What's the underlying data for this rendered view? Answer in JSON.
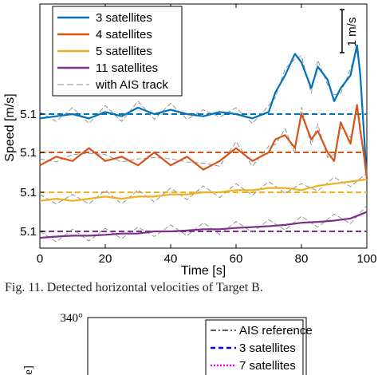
{
  "chart_data": [
    {
      "type": "line",
      "title": "",
      "xlabel": "Time [s]",
      "ylabel": "Speed [m/s]",
      "xlim": [
        0,
        100
      ],
      "xticks": [
        0,
        20,
        40,
        60,
        80,
        100
      ],
      "ytick_labels": [
        "5.1",
        "5.1",
        "5.1",
        "5.1"
      ],
      "scalebar_label": "1 m/s",
      "grid": false,
      "legend_position": "top-left",
      "series": [
        {
          "name": "3 satellites",
          "color": "#0072BD",
          "reference_color": "#0072BD",
          "x": [
            0,
            5,
            10,
            15,
            20,
            25,
            30,
            35,
            40,
            45,
            50,
            55,
            60,
            65,
            70,
            72,
            75,
            78,
            80,
            83,
            85,
            88,
            90,
            92,
            95,
            97,
            98,
            99,
            100
          ],
          "values": [
            -0.1,
            -0.05,
            0.0,
            -0.1,
            0.05,
            -0.05,
            0.15,
            0.0,
            0.1,
            0.0,
            -0.05,
            0.05,
            0.0,
            -0.1,
            0.05,
            0.5,
            0.9,
            1.4,
            1.2,
            0.6,
            1.1,
            0.8,
            0.3,
            0.6,
            0.9,
            1.6,
            0.9,
            -0.3,
            -1.5
          ]
        },
        {
          "name": "4 satellites",
          "color": "#D95319",
          "reference_color": "#D95319",
          "x": [
            0,
            5,
            10,
            15,
            20,
            25,
            30,
            35,
            40,
            45,
            50,
            55,
            60,
            65,
            70,
            72,
            75,
            78,
            80,
            83,
            85,
            88,
            90,
            92,
            95,
            97,
            98,
            99,
            100
          ],
          "values": [
            -0.3,
            -0.1,
            -0.2,
            0.1,
            -0.2,
            -0.1,
            -0.3,
            0.0,
            -0.3,
            -0.1,
            -0.4,
            -0.2,
            0.1,
            -0.2,
            0.0,
            0.3,
            0.4,
            0.1,
            0.9,
            0.3,
            0.5,
            0.0,
            -0.2,
            0.7,
            0.2,
            1.1,
            0.5,
            0.0,
            -0.6
          ]
        },
        {
          "name": "5 satellites",
          "color": "#EDB120",
          "reference_color": "#EDB120",
          "x": [
            0,
            5,
            10,
            15,
            20,
            25,
            30,
            35,
            40,
            45,
            50,
            55,
            60,
            65,
            70,
            75,
            80,
            85,
            90,
            95,
            100
          ],
          "values": [
            -0.2,
            -0.15,
            -0.2,
            -0.15,
            -0.1,
            -0.15,
            -0.1,
            -0.1,
            -0.05,
            -0.05,
            0.0,
            0.0,
            0.05,
            0.05,
            0.1,
            0.1,
            0.05,
            0.15,
            0.2,
            0.25,
            0.3
          ]
        },
        {
          "name": "11 satellites",
          "color": "#7E2F8E",
          "reference_color": "#7E2F8E",
          "x": [
            0,
            5,
            10,
            15,
            20,
            25,
            30,
            35,
            40,
            45,
            50,
            55,
            60,
            65,
            70,
            75,
            80,
            85,
            90,
            95,
            100
          ],
          "values": [
            -0.15,
            -0.12,
            -0.1,
            -0.1,
            -0.08,
            -0.05,
            -0.05,
            0.0,
            0.0,
            0.02,
            0.05,
            0.05,
            0.08,
            0.1,
            0.12,
            0.15,
            0.2,
            0.22,
            0.25,
            0.3,
            0.45
          ]
        },
        {
          "name": "with AIS track",
          "color": "#888888",
          "style": "dashed"
        }
      ]
    },
    {
      "type": "line",
      "yticks_visible": [
        "340°"
      ],
      "legend_position": "top-right",
      "series": [
        {
          "name": "AIS reference",
          "color": "#000000",
          "style": "dash-dot"
        },
        {
          "name": "3 satellites",
          "color": "#0000FF",
          "style": "dashed"
        },
        {
          "name": "7 satellites",
          "color": "#FF00FF",
          "style": "dotted"
        }
      ],
      "ylabel_visible_fragment": "e]"
    }
  ],
  "caption": "Fig. 11.  Detected horizontal velocities of Target B."
}
